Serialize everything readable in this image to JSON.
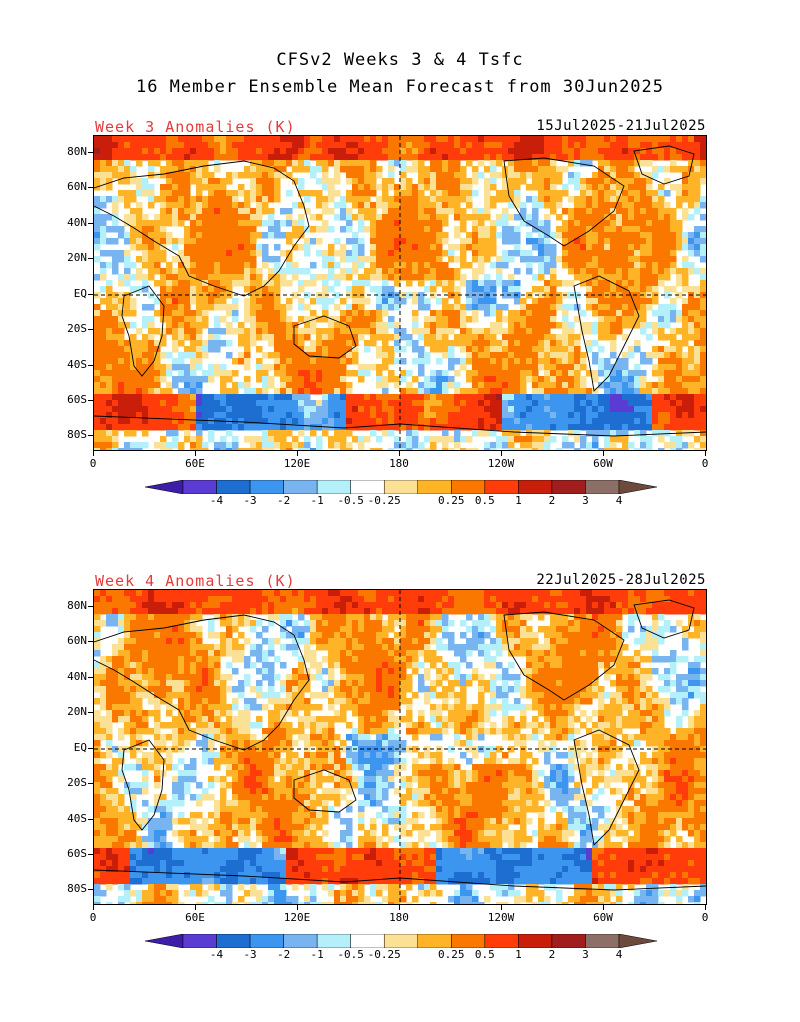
{
  "title": {
    "line1": "CFSv2 Weeks 3 & 4 Tsfc",
    "line2": "16 Member Ensemble Mean Forecast from 30Jun2025"
  },
  "colors": {
    "label_red": "#e23c3c",
    "scale": [
      "#3c1ea8",
      "#5a3cd2",
      "#1e6ed2",
      "#3c96f0",
      "#78b4f0",
      "#b4f0fa",
      "#ffffff",
      "#fae196",
      "#ffb428",
      "#fa7800",
      "#ff3c0a",
      "#c81e0a",
      "#a01e1e",
      "#8c7068",
      "#6e4a3c"
    ]
  },
  "axis": {
    "lat_labels": [
      "80N",
      "60N",
      "40N",
      "20N",
      "EQ",
      "20S",
      "40S",
      "60S",
      "80S"
    ],
    "lon_labels": [
      "0",
      "60E",
      "120E",
      "180",
      "120W",
      "60W",
      "0"
    ]
  },
  "colorbar": {
    "labels": [
      "-4",
      "-3",
      "-2",
      "-1",
      "-0.5",
      "-0.25",
      "0.25",
      "0.5",
      "1",
      "2",
      "3",
      "4"
    ]
  },
  "panels": [
    {
      "label": "Week 3 Anomalies (K)",
      "dates": "15Jul2025-21Jul2025"
    },
    {
      "label": "Week 4 Anomalies (K)",
      "dates": "22Jul2025-28Jul2025"
    }
  ]
}
